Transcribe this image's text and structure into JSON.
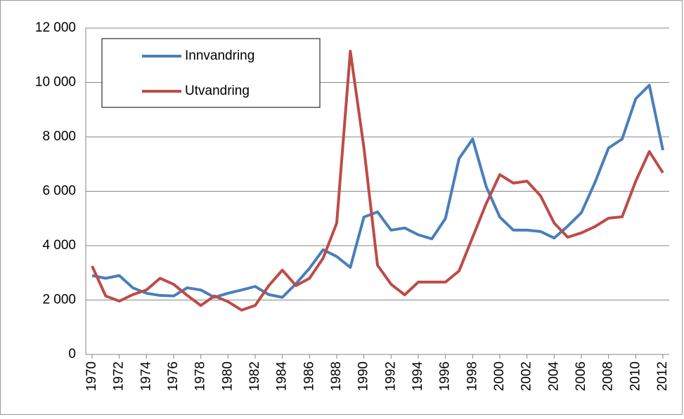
{
  "chart_data": {
    "type": "line",
    "x": [
      1970,
      1971,
      1972,
      1973,
      1974,
      1975,
      1976,
      1977,
      1978,
      1979,
      1980,
      1981,
      1982,
      1983,
      1984,
      1985,
      1986,
      1987,
      1988,
      1989,
      1990,
      1991,
      1992,
      1993,
      1994,
      1995,
      1996,
      1997,
      1998,
      1999,
      2000,
      2001,
      2002,
      2003,
      2004,
      2005,
      2006,
      2007,
      2008,
      2009,
      2010,
      2011,
      2012
    ],
    "series": [
      {
        "name": "Innvandring",
        "color": "#4a7ebb",
        "values": [
          2900,
          2800,
          2900,
          2450,
          2250,
          2170,
          2150,
          2450,
          2370,
          2100,
          2250,
          2370,
          2500,
          2200,
          2100,
          2600,
          3170,
          3850,
          3600,
          3200,
          5050,
          5240,
          4570,
          4650,
          4400,
          4250,
          5000,
          7200,
          7920,
          6170,
          5050,
          4570,
          4570,
          4520,
          4280,
          4720,
          5210,
          6320,
          7590,
          7920,
          9400,
          9900,
          7510
        ]
      },
      {
        "name": "Utvandring",
        "color": "#be4b48",
        "values": [
          3250,
          2150,
          1960,
          2200,
          2370,
          2800,
          2580,
          2170,
          1800,
          2150,
          1940,
          1630,
          1800,
          2530,
          3100,
          2530,
          2800,
          3540,
          4830,
          11150,
          7600,
          3280,
          2580,
          2190,
          2660,
          2660,
          2660,
          3070,
          4310,
          5550,
          6610,
          6300,
          6370,
          5830,
          4830,
          4310,
          4470,
          4700,
          5010,
          5060,
          6370,
          7460,
          6680
        ]
      }
    ],
    "xlim": [
      1970,
      2012
    ],
    "xticks": [
      1970,
      1972,
      1974,
      1976,
      1978,
      1980,
      1982,
      1984,
      1986,
      1988,
      1990,
      1992,
      1994,
      1996,
      1998,
      2000,
      2002,
      2004,
      2006,
      2008,
      2010,
      2012
    ],
    "ylim": [
      0,
      12000
    ],
    "yticks": [
      0,
      {
        "value": 2000,
        "label": "2 000"
      },
      {
        "value": 4000,
        "label": "4 000"
      },
      {
        "value": 6000,
        "label": "6 000"
      },
      {
        "value": 8000,
        "label": "8 000"
      },
      {
        "value": 10000,
        "label": "10 000"
      },
      {
        "value": 12000,
        "label": "12 000"
      }
    ],
    "grid": true,
    "legend": "upper left"
  }
}
